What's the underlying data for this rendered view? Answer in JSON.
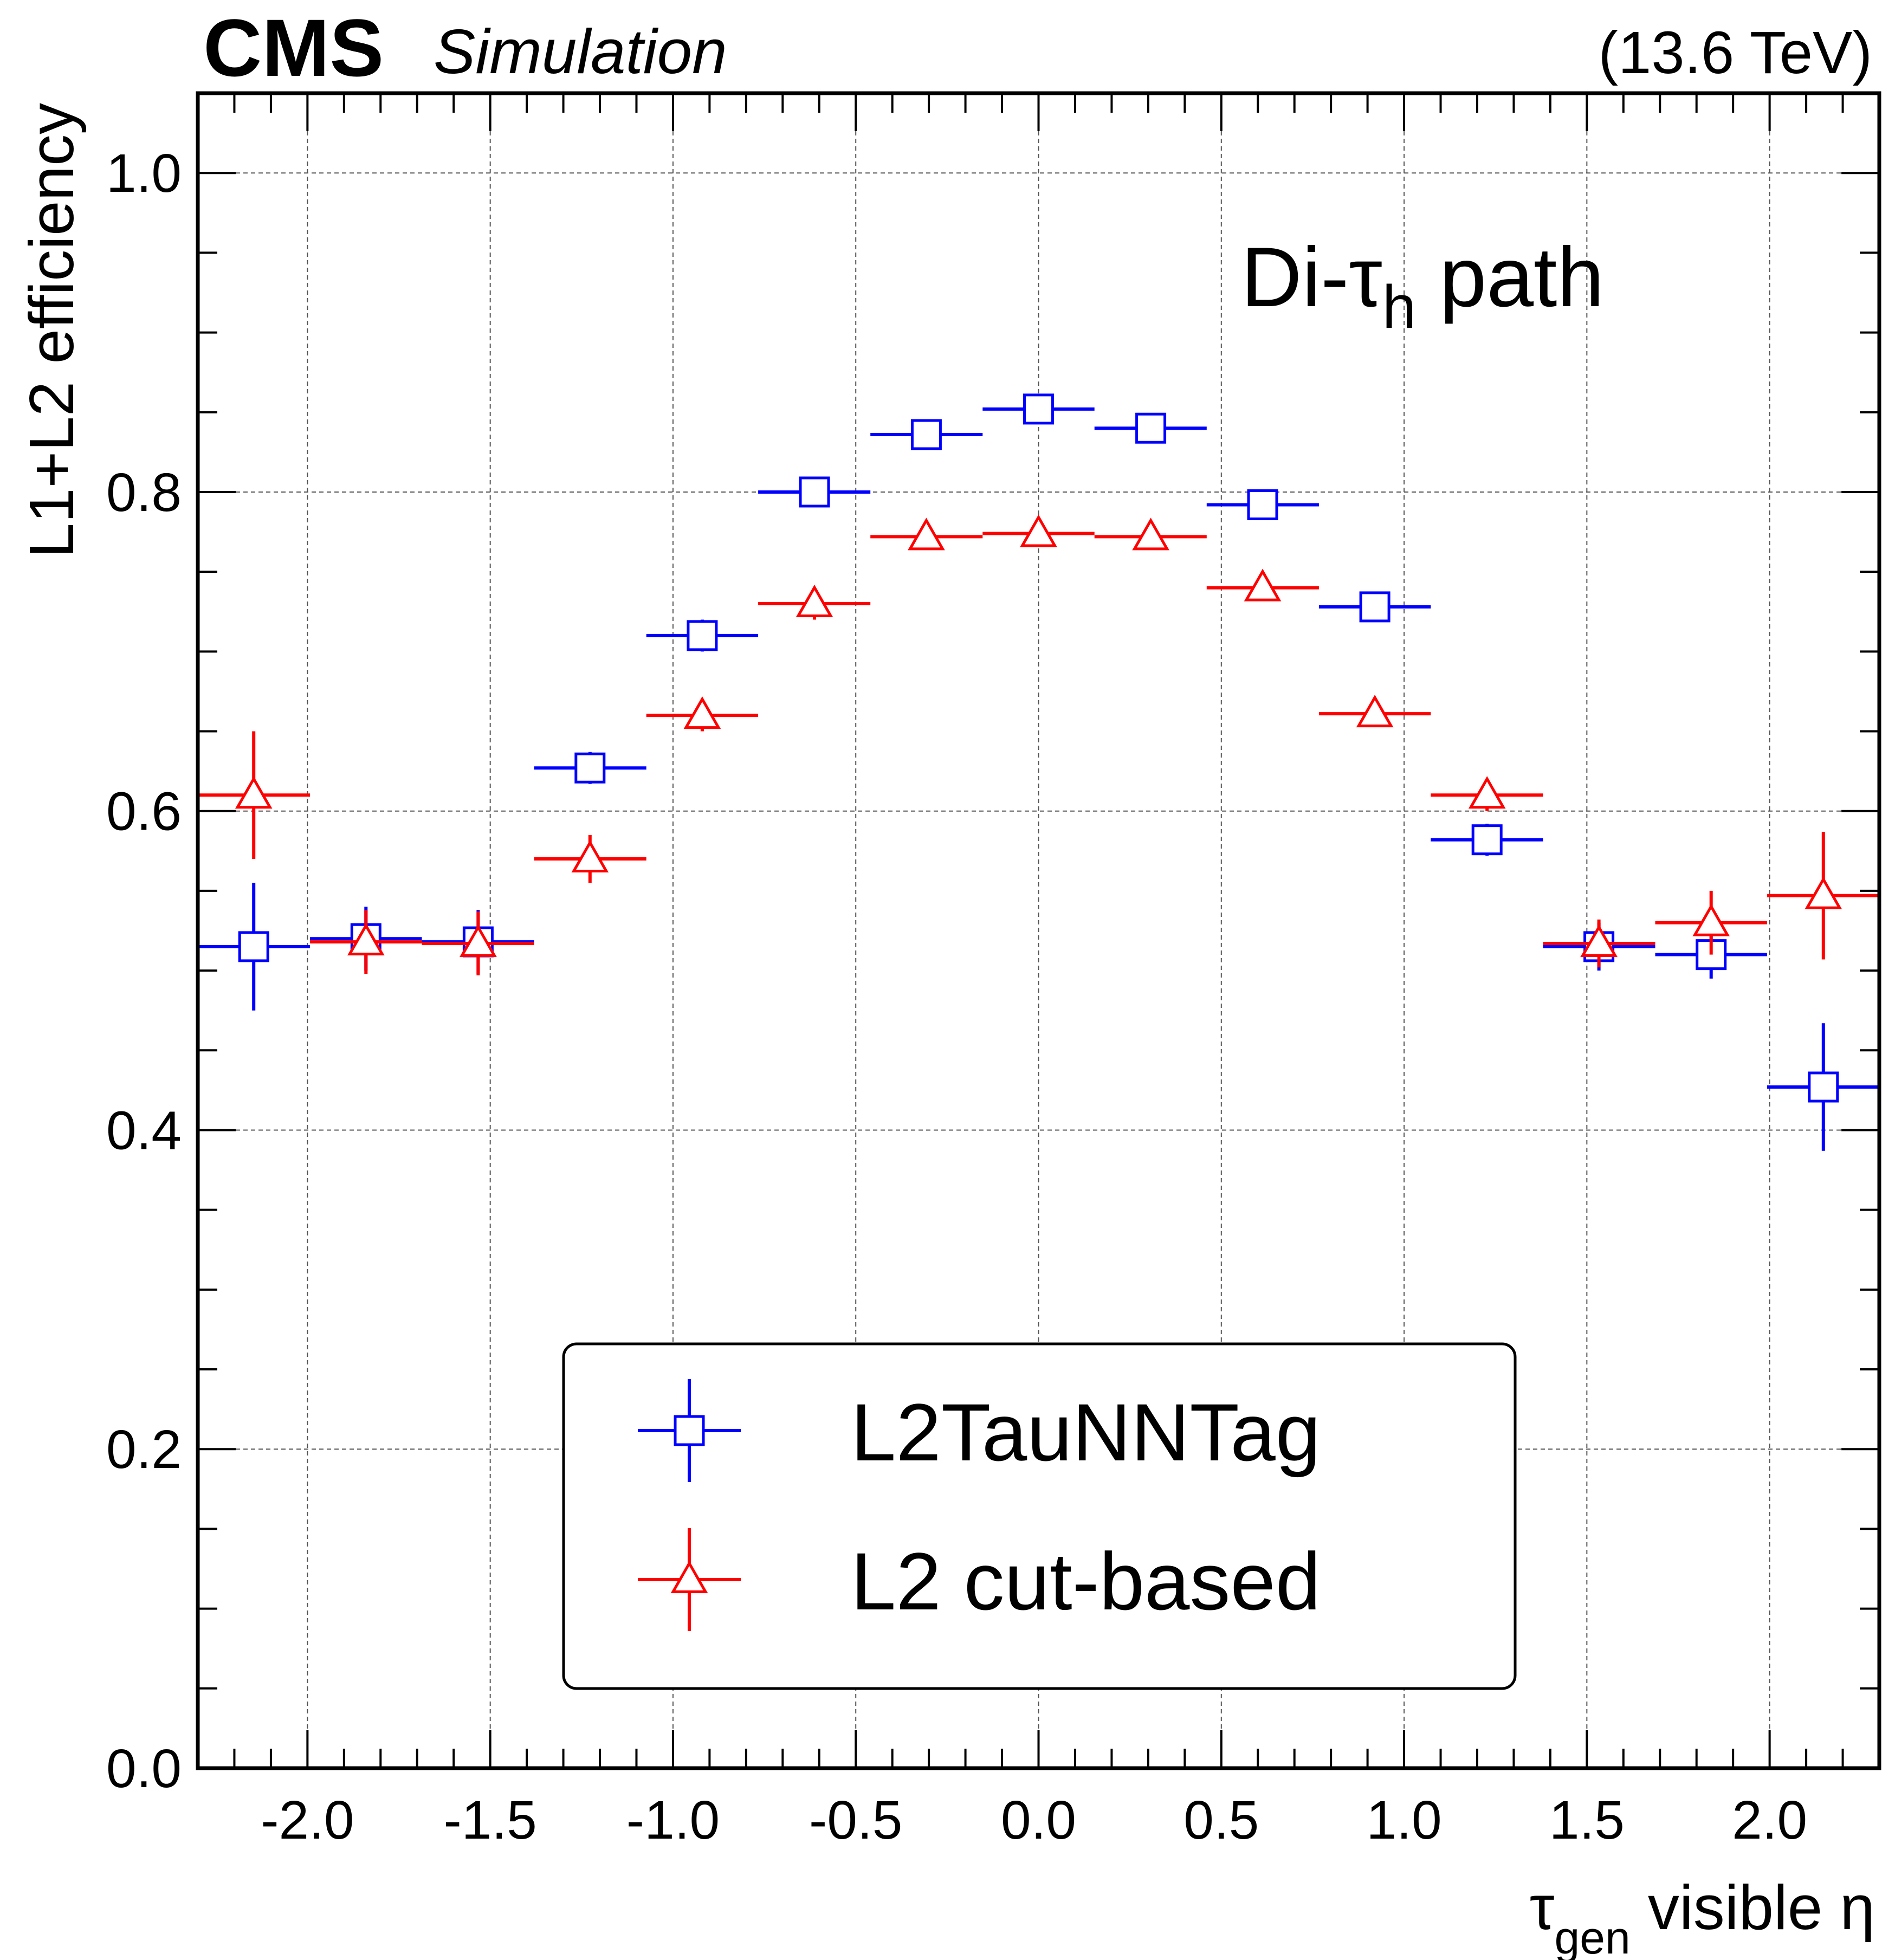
{
  "header": {
    "experiment": "CMS",
    "label": "Simulation",
    "energy": "(13.6 TeV)"
  },
  "annotation": {
    "prefix": "Di-τ",
    "subscript": "h",
    "suffix": " path"
  },
  "chart_data": {
    "type": "scatter",
    "title": "",
    "xlabel": "τgen visible η",
    "xlabel_parts": {
      "symbol": "τ",
      "subscript": "gen",
      "rest": " visible η"
    },
    "ylabel": "L1+L2 efficiency",
    "xlim": [
      -2.3,
      2.3
    ],
    "ylim": [
      0.0,
      1.05
    ],
    "grid": true,
    "legend_position": "bottom-center",
    "x_ticks": [
      -2.0,
      -1.5,
      -1.0,
      -0.5,
      0.0,
      0.5,
      1.0,
      1.5,
      2.0
    ],
    "x_tick_labels": [
      "-2.0",
      "-1.5",
      "-1.0",
      "-0.5",
      "0.0",
      "0.5",
      "1.0",
      "1.5",
      "2.0"
    ],
    "y_ticks": [
      0.0,
      0.2,
      0.4,
      0.6,
      0.8,
      1.0
    ],
    "y_tick_labels": [
      "0.0",
      "0.2",
      "0.4",
      "0.6",
      "0.8",
      "1.0"
    ],
    "bin_edges": [
      -2.3,
      -1.993,
      -1.687,
      -1.38,
      -1.073,
      -0.767,
      -0.46,
      -0.153,
      0.153,
      0.46,
      0.767,
      1.073,
      1.38,
      1.687,
      1.993,
      2.3
    ],
    "x": [
      -2.147,
      -1.84,
      -1.533,
      -1.227,
      -0.92,
      -0.613,
      -0.307,
      0.0,
      0.307,
      0.613,
      0.92,
      1.227,
      1.533,
      1.84,
      2.147
    ],
    "series": [
      {
        "name": "L2TauNNTag",
        "color": "#0000ff",
        "marker": "open-square",
        "values": [
          0.515,
          0.52,
          0.518,
          0.627,
          0.71,
          0.8,
          0.836,
          0.852,
          0.84,
          0.792,
          0.728,
          0.582,
          0.515,
          0.51,
          0.427
        ],
        "errors": [
          0.04,
          0.02,
          0.02,
          0.01,
          0.01,
          0.006,
          0.006,
          0.006,
          0.006,
          0.006,
          0.008,
          0.01,
          0.015,
          0.015,
          0.04
        ]
      },
      {
        "name": "L2 cut-based",
        "color": "#ff0000",
        "marker": "open-triangle",
        "values": [
          0.61,
          0.518,
          0.517,
          0.57,
          0.66,
          0.73,
          0.772,
          0.774,
          0.772,
          0.74,
          0.661,
          0.61,
          0.517,
          0.53,
          0.547
        ],
        "errors": [
          0.04,
          0.02,
          0.02,
          0.015,
          0.01,
          0.01,
          0.006,
          0.006,
          0.006,
          0.006,
          0.008,
          0.01,
          0.015,
          0.02,
          0.04
        ]
      }
    ]
  }
}
